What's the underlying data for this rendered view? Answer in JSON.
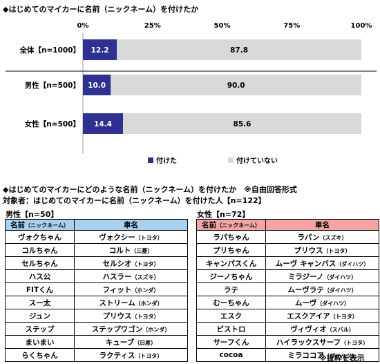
{
  "chart_title": "◆はじめてのマイカーに名前（ニックネーム）を付けたか",
  "chart_data": {
    "type": "bar",
    "orientation": "horizontal",
    "stacked": true,
    "categories": [
      "全体【n=1000】",
      "男性【n=500】",
      "女性【n=500】"
    ],
    "series": [
      {
        "name": "付けた",
        "values": [
          12.2,
          10.0,
          14.4
        ],
        "labels": [
          "12.2",
          "10.0",
          "14.4"
        ],
        "color": "#2e3192"
      },
      {
        "name": "付けていない",
        "values": [
          87.8,
          90.0,
          85.6
        ],
        "labels": [
          "87.8",
          "90.0",
          "85.6"
        ],
        "color": "#d9d9d9"
      }
    ],
    "x_ticks": [
      "0%",
      "25%",
      "50%",
      "75%",
      "100%"
    ],
    "xlim": [
      0,
      100
    ],
    "legend_position": "bottom",
    "grid": false
  },
  "list_title": "◆はじめてのマイカーにどのような名前（ニックネーム）を付けたか　※自由回答形式",
  "list_subtitle": "対象者：はじめてのマイカーに名前（ニックネーム）を付けた人【n=122】",
  "male": {
    "label": "男性【n=50】",
    "head_name": "名前",
    "head_name_small": "（ニックネーム）",
    "head_car": "車名",
    "rows": [
      {
        "name": "ヴォクちゃん",
        "car": "ヴォクシー",
        "maker": "（トヨタ）"
      },
      {
        "name": "コルちゃん",
        "car": "コルト",
        "maker": "（三菱）"
      },
      {
        "name": "セルちゃん",
        "car": "セルシオ",
        "maker": "（トヨタ）"
      },
      {
        "name": "ハス公",
        "car": "ハスラー",
        "maker": "（スズキ）"
      },
      {
        "name": "FITくん",
        "car": "フィット",
        "maker": "（ホンダ）"
      },
      {
        "name": "スー太",
        "car": "ストリーム",
        "maker": "（ホンダ）"
      },
      {
        "name": "ジュン",
        "car": "プリウス",
        "maker": "（トヨタ）"
      },
      {
        "name": "ステップ",
        "car": "ステップワゴン",
        "maker": "（ホンダ）"
      },
      {
        "name": "まいまい",
        "car": "キューブ",
        "maker": "（日産）"
      },
      {
        "name": "らくちゃん",
        "car": "ラクティス",
        "maker": "（トヨタ）"
      }
    ]
  },
  "female": {
    "label": "女性【n=72】",
    "head_name": "名前",
    "head_name_small": "（ニックネーム）",
    "head_car": "車名",
    "rows": [
      {
        "name": "ラパちゃん",
        "car": "ラパン",
        "maker": "（スズキ）"
      },
      {
        "name": "プリちゃん",
        "car": "プリウス",
        "maker": "（トヨタ）"
      },
      {
        "name": "キャンパスくん",
        "car": "ムーヴ キャンバス",
        "maker": "（ダイハツ）"
      },
      {
        "name": "ジーノちゃん",
        "car": "ミラジーノ",
        "maker": "（ダイハツ）"
      },
      {
        "name": "ラテ",
        "car": "ムーヴラテ",
        "maker": "（ダイハツ）"
      },
      {
        "name": "むーちゃん",
        "car": "ムーヴ",
        "maker": "（ダイハツ）"
      },
      {
        "name": "エスク",
        "car": "エスクアイア",
        "maker": "（トヨタ）"
      },
      {
        "name": "ビストロ",
        "car": "ヴィヴィオ",
        "maker": "（スバル）"
      },
      {
        "name": "サーフくん",
        "car": "ハイラックスサーフ",
        "maker": "（トヨタ）"
      },
      {
        "name": "cocoa",
        "car": "ミラココア",
        "maker": "（ダイハツ）"
      }
    ]
  },
  "footnote": "※抜粋を表示"
}
